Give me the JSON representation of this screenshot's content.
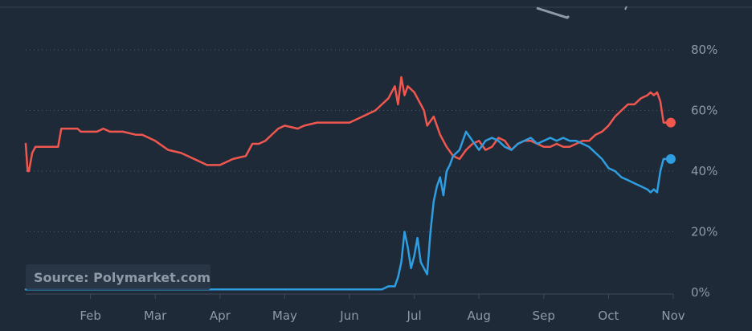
{
  "source_label": "Source: Polymarket.com",
  "colors": {
    "background": "#1e2a38",
    "series_red": "#f0574f",
    "series_blue": "#2f9ee0",
    "gridline": "#4a5a6b",
    "tick_text": "#8f9aa6"
  },
  "chart_data": {
    "type": "line",
    "grid": true,
    "grid_style": "dotted",
    "y_axis_side": "right",
    "ylim": [
      0,
      80
    ],
    "yticks": [
      0,
      20,
      40,
      60,
      80
    ],
    "ytick_labels": [
      "0%",
      "20%",
      "40%",
      "60%",
      "80%"
    ],
    "xlim": [
      0,
      10
    ],
    "xtick_positions": [
      1,
      2,
      3,
      4,
      5,
      6,
      7,
      8,
      9,
      10
    ],
    "xtick_labels": [
      "Feb",
      "Mar",
      "Apr",
      "May",
      "Jun",
      "Jul",
      "Aug",
      "Sep",
      "Oct",
      "Nov"
    ],
    "x_unit": "months from Jan 1",
    "series": [
      {
        "color": "#f0574f",
        "end_marker": true,
        "x": [
          0.0,
          0.03,
          0.05,
          0.1,
          0.15,
          0.2,
          0.3,
          0.5,
          0.55,
          0.6,
          0.8,
          0.85,
          0.95,
          1.1,
          1.2,
          1.3,
          1.4,
          1.5,
          1.7,
          1.8,
          2.0,
          2.2,
          2.4,
          2.6,
          2.8,
          3.0,
          3.2,
          3.4,
          3.5,
          3.6,
          3.7,
          3.9,
          4.0,
          4.2,
          4.3,
          4.5,
          4.7,
          4.9,
          5.0,
          5.2,
          5.4,
          5.6,
          5.7,
          5.75,
          5.8,
          5.85,
          5.9,
          6.0,
          6.1,
          6.15,
          6.2,
          6.3,
          6.4,
          6.5,
          6.6,
          6.7,
          6.8,
          6.9,
          7.0,
          7.1,
          7.2,
          7.3,
          7.4,
          7.5,
          7.6,
          7.7,
          7.8,
          7.9,
          8.0,
          8.1,
          8.2,
          8.3,
          8.4,
          8.5,
          8.6,
          8.7,
          8.8,
          8.9,
          9.0,
          9.1,
          9.2,
          9.3,
          9.4,
          9.5,
          9.6,
          9.65,
          9.7,
          9.75,
          9.8,
          9.85,
          9.9
        ],
        "values": [
          49,
          40,
          40,
          46,
          48,
          48,
          48,
          48,
          54,
          54,
          54,
          53,
          53,
          53,
          54,
          53,
          53,
          53,
          52,
          52,
          50,
          47,
          46,
          44,
          42,
          42,
          44,
          45,
          49,
          49,
          50,
          54,
          55,
          54,
          55,
          56,
          56,
          56,
          56,
          58,
          60,
          64,
          68,
          62,
          71,
          65,
          68,
          66,
          62,
          60,
          55,
          58,
          52,
          48,
          45,
          44,
          47,
          49,
          50,
          47,
          48,
          51,
          50,
          47,
          49,
          50,
          50,
          49,
          48,
          48,
          49,
          48,
          48,
          49,
          50,
          50,
          52,
          53,
          55,
          58,
          60,
          62,
          62,
          64,
          65,
          66,
          65,
          66,
          63,
          56,
          56
        ]
      },
      {
        "color": "#2f9ee0",
        "end_marker": true,
        "x": [
          0.0,
          0.5,
          1.0,
          2.0,
          3.0,
          4.0,
          5.0,
          5.5,
          5.6,
          5.7,
          5.75,
          5.8,
          5.85,
          5.9,
          5.95,
          6.0,
          6.05,
          6.1,
          6.2,
          6.25,
          6.3,
          6.35,
          6.4,
          6.45,
          6.5,
          6.55,
          6.6,
          6.7,
          6.8,
          6.9,
          7.0,
          7.1,
          7.2,
          7.3,
          7.4,
          7.5,
          7.6,
          7.7,
          7.8,
          7.9,
          8.0,
          8.1,
          8.2,
          8.3,
          8.4,
          8.5,
          8.6,
          8.7,
          8.8,
          8.9,
          9.0,
          9.1,
          9.2,
          9.3,
          9.4,
          9.5,
          9.6,
          9.65,
          9.7,
          9.75,
          9.8,
          9.85,
          9.9
        ],
        "values": [
          1,
          1,
          1,
          1,
          1,
          1,
          1,
          1,
          2,
          2,
          5,
          10,
          20,
          15,
          8,
          12,
          18,
          10,
          6,
          20,
          30,
          35,
          38,
          32,
          40,
          42,
          45,
          47,
          53,
          50,
          47,
          50,
          51,
          50,
          48,
          47,
          49,
          50,
          51,
          49,
          50,
          51,
          50,
          51,
          50,
          50,
          49,
          48,
          46,
          44,
          41,
          40,
          38,
          37,
          36,
          35,
          34,
          33,
          34,
          33,
          40,
          44,
          44
        ]
      }
    ]
  }
}
